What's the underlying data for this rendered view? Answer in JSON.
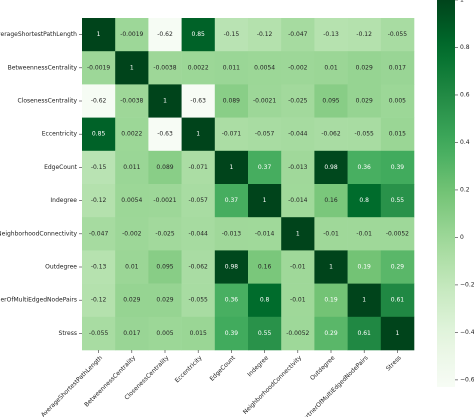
{
  "chart_data": {
    "type": "heatmap",
    "colormap": "Greens",
    "value_range": [
      -0.63,
      1
    ],
    "variables": [
      "AverageShortestPathLength",
      "BetweennessCentrality",
      "ClosenessCentrality",
      "Eccentricity",
      "EdgeCount",
      "Indegree",
      "NeighborhoodConnectivity",
      "Outdegree",
      "PartnerOfMultiEdgedNodePairs",
      "Stress"
    ],
    "matrix": [
      [
        1,
        -0.0019,
        -0.62,
        0.85,
        -0.15,
        -0.12,
        -0.047,
        -0.13,
        -0.12,
        -0.055
      ],
      [
        -0.0019,
        1,
        -0.0038,
        0.0022,
        0.011,
        0.0054,
        -0.002,
        0.01,
        0.029,
        0.017
      ],
      [
        -0.62,
        -0.0038,
        1,
        -0.63,
        0.089,
        -0.0021,
        -0.025,
        0.095,
        0.029,
        0.005
      ],
      [
        0.85,
        0.0022,
        -0.63,
        1,
        -0.071,
        -0.057,
        -0.044,
        -0.062,
        -0.055,
        0.015
      ],
      [
        -0.15,
        0.011,
        0.089,
        -0.071,
        1,
        0.37,
        -0.013,
        0.98,
        0.36,
        0.39
      ],
      [
        -0.12,
        0.0054,
        -0.0021,
        -0.057,
        0.37,
        1,
        -0.014,
        0.16,
        0.8,
        0.55
      ],
      [
        -0.047,
        -0.002,
        -0.025,
        -0.044,
        -0.013,
        -0.014,
        1,
        -0.01,
        -0.01,
        -0.0052
      ],
      [
        -0.13,
        0.01,
        0.095,
        -0.062,
        0.98,
        0.16,
        -0.01,
        1,
        0.19,
        0.29
      ],
      [
        -0.12,
        0.029,
        0.029,
        -0.055,
        0.36,
        0.8,
        -0.01,
        0.19,
        1,
        0.61
      ],
      [
        -0.055,
        0.017,
        0.005,
        0.015,
        0.39,
        0.55,
        -0.0052,
        0.29,
        0.61,
        1
      ]
    ],
    "annotations": [
      [
        "1",
        "-0.0019",
        "-0.62",
        "0.85",
        "-0.15",
        "-0.12",
        "-0.047",
        "-0.13",
        "-0.12",
        "-0.055"
      ],
      [
        "-0.0019",
        "1",
        "-0.0038",
        "0.0022",
        "0.011",
        "0.0054",
        "-0.002",
        "0.01",
        "0.029",
        "0.017"
      ],
      [
        "-0.62",
        "-0.0038",
        "1",
        "-0.63",
        "0.089",
        "-0.0021",
        "-0.025",
        "0.095",
        "0.029",
        "0.005"
      ],
      [
        "0.85",
        "0.0022",
        "-0.63",
        "1",
        "-0.071",
        "-0.057",
        "-0.044",
        "-0.062",
        "-0.055",
        "0.015"
      ],
      [
        "-0.15",
        "0.011",
        "0.089",
        "-0.071",
        "1",
        "0.37",
        "-0.013",
        "0.98",
        "0.36",
        "0.39"
      ],
      [
        "-0.12",
        "0.0054",
        "-0.0021",
        "-0.057",
        "0.37",
        "1",
        "-0.014",
        "0.16",
        "0.8",
        "0.55"
      ],
      [
        "-0.047",
        "-0.002",
        "-0.025",
        "-0.044",
        "-0.013",
        "-0.014",
        "1",
        "-0.01",
        "-0.01",
        "-0.0052"
      ],
      [
        "-0.13",
        "0.01",
        "0.095",
        "-0.062",
        "0.98",
        "0.16",
        "-0.01",
        "1",
        "0.19",
        "0.29"
      ],
      [
        "-0.12",
        "0.029",
        "0.029",
        "-0.055",
        "0.36",
        "0.8",
        "-0.01",
        "0.19",
        "1",
        "0.61"
      ],
      [
        "-0.055",
        "0.017",
        "0.005",
        "0.015",
        "0.39",
        "0.55",
        "-0.0052",
        "0.29",
        "0.61",
        "1"
      ]
    ],
    "colorbar": {
      "ticks": [
        -0.6,
        -0.4,
        -0.2,
        0,
        0.2,
        0.4,
        0.6,
        0.8,
        1
      ],
      "tick_labels": [
        "−0.6",
        "−0.4",
        "−0.2",
        "0",
        "0.2",
        "0.4",
        "0.6",
        "0.8",
        "1"
      ],
      "range": [
        -0.63,
        1
      ]
    },
    "title": "",
    "xlabel": "",
    "ylabel": ""
  }
}
